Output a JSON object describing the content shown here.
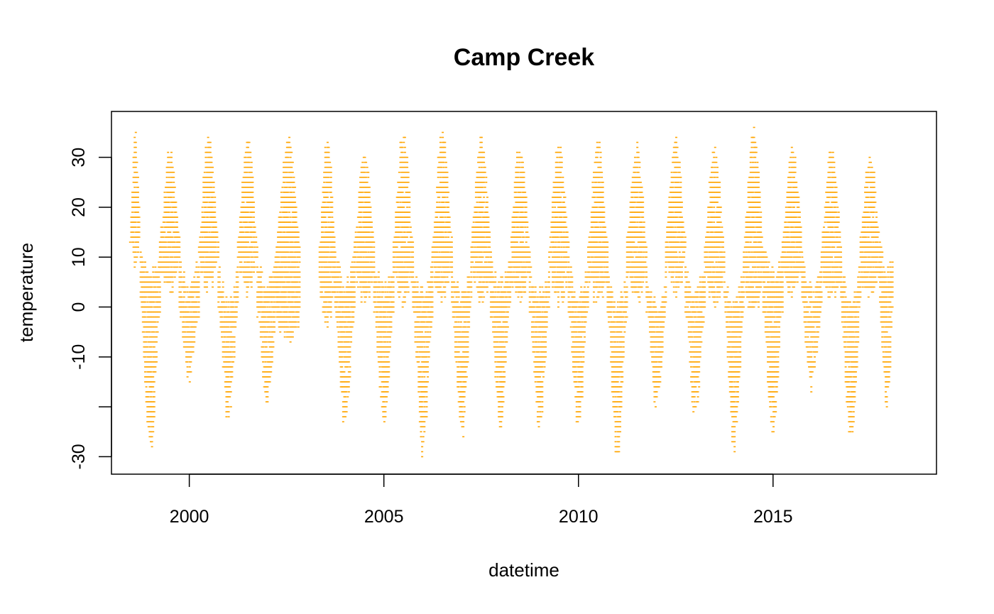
{
  "chart_data": {
    "type": "scatter",
    "title": "Camp Creek",
    "xlabel": "datetime",
    "ylabel": "temperature",
    "xlim": [
      1998.0,
      2019.2
    ],
    "ylim": [
      -33.5,
      39.2
    ],
    "x_ticks": [
      2000,
      2005,
      2010,
      2015
    ],
    "x_tick_labels": [
      "2000",
      "2005",
      "2010",
      "2015"
    ],
    "y_ticks": [
      -30,
      -20,
      -10,
      0,
      10,
      20,
      30
    ],
    "y_tick_labels": [
      "-30",
      "",
      "-10",
      "0",
      "10",
      "20",
      "30"
    ],
    "grid": false,
    "legend": "none",
    "marker_color": "#FFA500",
    "point_style": "small horizontal dash",
    "series_summary": {
      "description_of_envelope": "seasonal upper and lower bounds of plotted readings, per half-year segment",
      "segments": [
        {
          "x_start": 1998.48,
          "x_end": 1998.75,
          "y_min": 7,
          "y_max": 35,
          "season": "summer"
        },
        {
          "x_start": 1998.75,
          "x_end": 1999.25,
          "y_min": -30,
          "y_max": 14,
          "season": "winter"
        },
        {
          "x_start": 1999.25,
          "x_end": 1999.75,
          "y_min": 2,
          "y_max": 32,
          "season": "summer"
        },
        {
          "x_start": 1999.75,
          "x_end": 2000.25,
          "y_min": -15,
          "y_max": 11,
          "season": "winter"
        },
        {
          "x_start": 2000.25,
          "x_end": 2000.75,
          "y_min": 2,
          "y_max": 35,
          "season": "summer"
        },
        {
          "x_start": 2000.75,
          "x_end": 2001.25,
          "y_min": -24,
          "y_max": 9,
          "season": "winter"
        },
        {
          "x_start": 2001.25,
          "x_end": 2001.75,
          "y_min": 2,
          "y_max": 34,
          "season": "summer"
        },
        {
          "x_start": 2001.75,
          "x_end": 2002.25,
          "y_min": -20,
          "y_max": 12,
          "season": "winter"
        },
        {
          "x_start": 2002.25,
          "x_end": 2002.85,
          "y_min": -9,
          "y_max": 35,
          "season": "summer"
        },
        {
          "x_start": 2003.35,
          "x_end": 2003.75,
          "y_min": -4,
          "y_max": 35,
          "season": "summer"
        },
        {
          "x_start": 2003.75,
          "x_end": 2004.25,
          "y_min": -25,
          "y_max": 12,
          "season": "winter"
        },
        {
          "x_start": 2004.25,
          "x_end": 2004.75,
          "y_min": 0,
          "y_max": 31,
          "season": "summer"
        },
        {
          "x_start": 2004.75,
          "x_end": 2005.25,
          "y_min": -25,
          "y_max": 11,
          "season": "winter"
        },
        {
          "x_start": 2005.25,
          "x_end": 2005.75,
          "y_min": 0,
          "y_max": 36,
          "season": "summer"
        },
        {
          "x_start": 2005.75,
          "x_end": 2006.25,
          "y_min": -30,
          "y_max": 10,
          "season": "winter"
        },
        {
          "x_start": 2006.25,
          "x_end": 2006.75,
          "y_min": 1,
          "y_max": 36,
          "season": "summer"
        },
        {
          "x_start": 2006.75,
          "x_end": 2007.25,
          "y_min": -27,
          "y_max": 10,
          "season": "winter"
        },
        {
          "x_start": 2007.25,
          "x_end": 2007.75,
          "y_min": 0,
          "y_max": 35,
          "season": "summer"
        },
        {
          "x_start": 2007.75,
          "x_end": 2008.25,
          "y_min": -25,
          "y_max": 12,
          "season": "winter"
        },
        {
          "x_start": 2008.25,
          "x_end": 2008.75,
          "y_min": 0,
          "y_max": 34,
          "season": "summer"
        },
        {
          "x_start": 2008.75,
          "x_end": 2009.25,
          "y_min": -25,
          "y_max": 10,
          "season": "winter"
        },
        {
          "x_start": 2009.25,
          "x_end": 2009.75,
          "y_min": 0,
          "y_max": 34,
          "season": "summer"
        },
        {
          "x_start": 2009.75,
          "x_end": 2010.25,
          "y_min": -25,
          "y_max": 10,
          "season": "winter"
        },
        {
          "x_start": 2010.25,
          "x_end": 2010.75,
          "y_min": 0,
          "y_max": 34,
          "season": "summer"
        },
        {
          "x_start": 2010.75,
          "x_end": 2011.25,
          "y_min": -31,
          "y_max": 8,
          "season": "winter"
        },
        {
          "x_start": 2011.25,
          "x_end": 2011.75,
          "y_min": 0,
          "y_max": 33,
          "season": "summer"
        },
        {
          "x_start": 2011.75,
          "x_end": 2012.25,
          "y_min": -21,
          "y_max": 8,
          "season": "winter"
        },
        {
          "x_start": 2012.25,
          "x_end": 2012.75,
          "y_min": 2,
          "y_max": 35,
          "season": "summer"
        },
        {
          "x_start": 2012.75,
          "x_end": 2013.25,
          "y_min": -23,
          "y_max": 10,
          "season": "winter"
        },
        {
          "x_start": 2013.25,
          "x_end": 2013.75,
          "y_min": 0,
          "y_max": 33,
          "season": "summer"
        },
        {
          "x_start": 2013.75,
          "x_end": 2014.25,
          "y_min": -29,
          "y_max": 8,
          "season": "winter"
        },
        {
          "x_start": 2014.25,
          "x_end": 2014.75,
          "y_min": -2,
          "y_max": 36,
          "season": "summer"
        },
        {
          "x_start": 2014.75,
          "x_end": 2015.25,
          "y_min": -26,
          "y_max": 14,
          "season": "winter"
        },
        {
          "x_start": 2015.25,
          "x_end": 2015.75,
          "y_min": 1,
          "y_max": 33,
          "season": "summer"
        },
        {
          "x_start": 2015.75,
          "x_end": 2016.25,
          "y_min": -17,
          "y_max": 11,
          "season": "winter"
        },
        {
          "x_start": 2016.25,
          "x_end": 2016.75,
          "y_min": 0,
          "y_max": 33,
          "season": "summer"
        },
        {
          "x_start": 2016.75,
          "x_end": 2017.25,
          "y_min": -28,
          "y_max": 9,
          "season": "winter"
        },
        {
          "x_start": 2017.25,
          "x_end": 2017.75,
          "y_min": 0,
          "y_max": 32,
          "season": "summer"
        },
        {
          "x_start": 2017.75,
          "x_end": 2018.1,
          "y_min": -21,
          "y_max": 14,
          "season": "winter"
        }
      ]
    }
  }
}
